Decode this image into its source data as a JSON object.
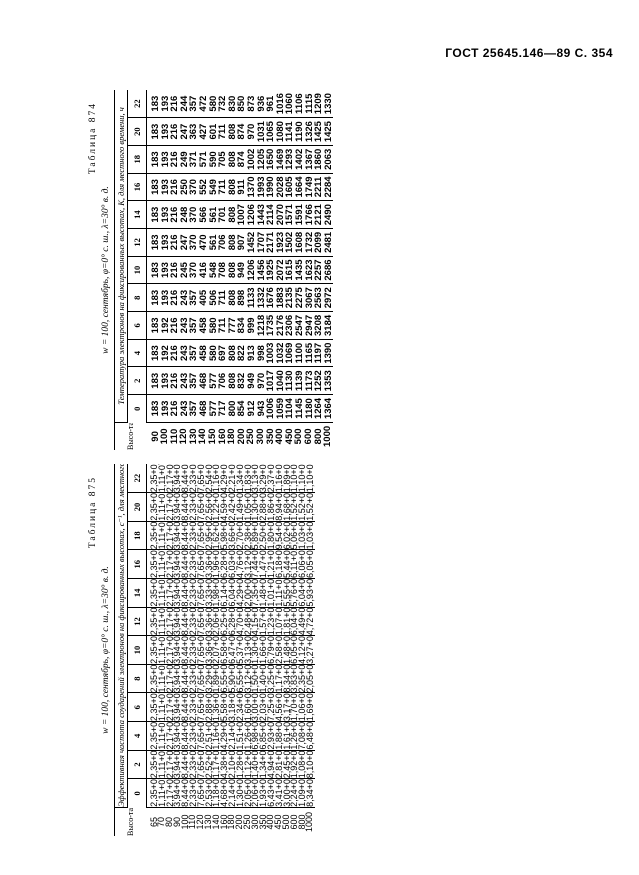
{
  "header": {
    "text": "ГОСТ 25645.146—89 С. 354"
  },
  "tables": [
    {
      "caption": "Таблица 874",
      "subcaption": "w = 100, сентябрь, φ=0° с. ш., λ=30° в. д.",
      "description": "Температура электронов на фиксированных высотах, К, для местного времени, ч",
      "height_header": "Высо-та, км",
      "times": [
        "0",
        "2",
        "4",
        "6",
        "8",
        "10",
        "12",
        "14",
        "16",
        "18",
        "20",
        "22"
      ],
      "heights": [
        "90",
        "100",
        "110",
        "120",
        "130",
        "140",
        "150",
        "160",
        "180",
        "200",
        "250",
        "300",
        "350",
        "400",
        "450",
        "500",
        "600",
        "800",
        "1000"
      ],
      "values": [
        [
          "183",
          "183",
          "183",
          "183",
          "183",
          "183",
          "183",
          "183",
          "183",
          "183",
          "183",
          "183"
        ],
        [
          "193",
          "193",
          "192",
          "192",
          "193",
          "193",
          "193",
          "193",
          "193",
          "193",
          "193",
          "193"
        ],
        [
          "216",
          "216",
          "216",
          "216",
          "216",
          "216",
          "216",
          "216",
          "216",
          "216",
          "216",
          "216"
        ],
        [
          "243",
          "243",
          "243",
          "243",
          "243",
          "245",
          "247",
          "248",
          "250",
          "249",
          "247",
          "244"
        ],
        [
          "357",
          "357",
          "357",
          "357",
          "357",
          "370",
          "370",
          "370",
          "370",
          "371",
          "363",
          "357"
        ],
        [
          "468",
          "468",
          "458",
          "458",
          "405",
          "416",
          "470",
          "566",
          "552",
          "571",
          "427",
          "472"
        ],
        [
          "577",
          "577",
          "580",
          "580",
          "506",
          "548",
          "561",
          "561",
          "549",
          "590",
          "601",
          "580"
        ],
        [
          "717",
          "706",
          "697",
          "711",
          "711",
          "708",
          "706",
          "701",
          "711",
          "705",
          "711",
          "732"
        ],
        [
          "800",
          "808",
          "808",
          "777",
          "808",
          "808",
          "808",
          "808",
          "808",
          "808",
          "808",
          "830"
        ],
        [
          "854",
          "832",
          "822",
          "834",
          "898",
          "949",
          "907",
          "1007",
          "911",
          "874",
          "874",
          "850"
        ],
        [
          "912",
          "949",
          "913",
          "999",
          "1133",
          "1206",
          "1452",
          "1206",
          "1370",
          "1002",
          "970",
          "873"
        ],
        [
          "943",
          "970",
          "998",
          "1218",
          "1332",
          "1456",
          "1707",
          "1443",
          "1993",
          "1205",
          "1031",
          "936"
        ],
        [
          "1006",
          "1017",
          "1003",
          "1735",
          "1676",
          "1925",
          "2171",
          "2114",
          "1990",
          "1650",
          "1065",
          "961"
        ],
        [
          "1059",
          "1040",
          "1032",
          "2176",
          "1883",
          "2072",
          "1923",
          "2070",
          "2028",
          "1469",
          "1080",
          "1016"
        ],
        [
          "1104",
          "1130",
          "1069",
          "2306",
          "2135",
          "1615",
          "1502",
          "1571",
          "1605",
          "1293",
          "1141",
          "1060"
        ],
        [
          "1145",
          "1139",
          "1100",
          "2547",
          "2275",
          "1435",
          "1608",
          "1591",
          "1664",
          "1402",
          "1190",
          "1106"
        ],
        [
          "1180",
          "1173",
          "1165",
          "2947",
          "3067",
          "1623",
          "1732",
          "1766",
          "1749",
          "1367",
          "1326",
          "1115"
        ],
        [
          "1264",
          "1252",
          "1197",
          "3208",
          "2563",
          "2257",
          "2099",
          "2121",
          "2211",
          "1860",
          "1425",
          "1209"
        ],
        [
          "1364",
          "1353",
          "1390",
          "3184",
          "2972",
          "2686",
          "2481",
          "2490",
          "2284",
          "2063",
          "1425",
          "1330"
        ]
      ]
    },
    {
      "caption": "Таблица 875",
      "subcaption": "w = 100, сентябрь, φ=0° с. ш., λ=30° в. д.",
      "description": "Эффективная частота соударений электронов на фиксированных высотах, с⁻¹, для местного времени, ч",
      "height_header": "Высо-та, км",
      "times": [
        "0",
        "2",
        "4",
        "6",
        "8",
        "10",
        "12",
        "14",
        "16",
        "18",
        "20",
        "22"
      ],
      "heights": [
        "65",
        "70",
        "80",
        "90",
        "100",
        "110",
        "120",
        "130",
        "140",
        "160",
        "180",
        "200",
        "250",
        "300",
        "350",
        "400",
        "450",
        "500",
        "600",
        "800",
        "1000"
      ],
      "values": [
        [
          "2,35+07",
          "2,35+07",
          "2,35+07",
          "2,35+07",
          "2,35+07",
          "2,35+07",
          "2,35+07",
          "2,35+07",
          "2,35+07",
          "2,35+07",
          "2,35+07",
          "2,35+07"
        ],
        [
          "1,11+07",
          "1,11+07",
          "1,11+07",
          "1,11+07",
          "1,11+07",
          "1,11+07",
          "1,11+07",
          "1,11+07",
          "1,11+07",
          "1,11+07",
          "1,11+07",
          "1,11+07"
        ],
        [
          "2,17+06",
          "2,17+06",
          "2,17+06",
          "2,17+06",
          "2,17+06",
          "2,17+06",
          "2,17+06",
          "2,17+06",
          "2,17+06",
          "2,17+06",
          "2,17+06",
          "2,17+06"
        ],
        [
          "3,94+05",
          "3,94+05",
          "3,94+05",
          "3,94+05",
          "3,94+05",
          "3,94+05",
          "3,94+05",
          "3,94+05",
          "3,94+05",
          "3,94+05",
          "3,94+05",
          "3,94+05"
        ],
        [
          "8,44+04",
          "8,44+04",
          "8,44+04",
          "8,44+04",
          "8,44+04",
          "8,44+04",
          "8,44+04",
          "8,44+04",
          "8,44+04",
          "8,44+04",
          "8,44+04",
          "8,44+04"
        ],
        [
          "2,33+04",
          "2,33+04",
          "2,33+04",
          "2,33+04",
          "2,33+04",
          "2,33+04",
          "2,33+04",
          "2,33+04",
          "2,33+04",
          "2,33+04",
          "2,33+04",
          "2,33+04"
        ],
        [
          "7,65+03",
          "7,65+03",
          "7,65+03",
          "7,65+03",
          "7,65+03",
          "7,65+03",
          "7,65+03",
          "7,65+03",
          "7,65+03",
          "7,65+03",
          "7,65+03",
          "7,65+03"
        ],
        [
          "2,53+03",
          "2,52+03",
          "2,51+03",
          "2,88+03",
          "3,29+03",
          "3,36+03",
          "3,36+03",
          "3,33+03",
          "3,36+03",
          "2,95+03",
          "2,56+03",
          "2,54+03"
        ],
        [
          "1,18+03",
          "1,17+03",
          "1,16+03",
          "1,36+03",
          "1,89+03",
          "2,07+03",
          "2,06+03",
          "1,98+03",
          "1,96+03",
          "1,62+03",
          "1,22+03",
          "1,16+03"
        ],
        [
          "4,68+02",
          "4,38+02",
          "4,29+02",
          "5,58+02",
          "6,55+02",
          "6,58+02",
          "6,25+02",
          "6,14+02",
          "6,28+02",
          "5,98+02",
          "4,59+02",
          "4,29+02"
        ],
        [
          "2,14+02",
          "2,10+02",
          "2,14+02",
          "3,18+02",
          "5,90+02",
          "6,47+02",
          "6,28+02",
          "6,04+02",
          "6,03+02",
          "3,66+02",
          "2,42+02",
          "2,21+02"
        ],
        [
          "1,30+02",
          "1,28+02",
          "1,51+02",
          "2,34+02",
          "6,55+02",
          "5,37+02",
          "4,70+02",
          "4,29+02",
          "4,76+02",
          "2,70+02",
          "1,49+02",
          "1,34+02"
        ],
        [
          "2,05+03",
          "1,12+02",
          "1,26+02",
          "1,60+02",
          "3,12+02",
          "3,13+02",
          "2,48+02",
          "2,00+02",
          "3,12+02",
          "2,38+02",
          "1,05+02",
          "1,83+01"
        ],
        [
          "2,06+03",
          "1,40+03",
          "6,98+02",
          "3,00+02",
          "1,50+03",
          "1,30+03",
          "4,15+02",
          "7,35+02",
          "7,44+02",
          "5,89+02",
          "1,30+03",
          "3,13+03"
        ],
        [
          "1,93+03",
          "1,34+03",
          "6,85+02",
          "2,03+02",
          "1,40+03",
          "1,66+03",
          "1,57+03",
          "1,48+03",
          "1,47+03",
          "2,50+03",
          "2,88+03",
          "3,29+03"
        ],
        [
          "6,43+02",
          "4,94+02",
          "2,93+02",
          "7,25+01",
          "3,25+02",
          "6,79+02",
          "1,23+03",
          "1,01+03",
          "1,21+03",
          "1,80+03",
          "1,86+03",
          "2,37+03"
        ],
        [
          "3,41+02",
          "2,81+02",
          "1,88+02",
          "4,56+01",
          "1,17+02",
          "2,58+02",
          "1,07+03",
          "1,11+03",
          "6,18+02",
          "9,54+02",
          "8,94+02",
          "1,16+03"
        ],
        [
          "3,00+02",
          "2,45+02",
          "1,61+02",
          "3,17+01",
          "8,34+01",
          "1,48+02",
          "1,81+02",
          "5,55+02",
          "5,44+02",
          "6,02+02",
          "1,68+02",
          "1,89+02"
        ],
        [
          "2,24+01",
          "1,92+01",
          "1,26+01",
          "1,70+01",
          "3,83+01",
          "6,05+01",
          "6,04+01",
          "5,76+01",
          "6,11+01",
          "5,06+02",
          "1,52+02",
          "1,10+02"
        ],
        [
          "1,09+01",
          "1,08+01",
          "7,08+00",
          "1,06+01",
          "2,35+01",
          "4,12+01",
          "4,49+01",
          "6,04+01",
          "6,06+01",
          "1,03+02",
          "1,52+02",
          "1,10+02"
        ],
        [
          "8,34+01",
          "8,10+01",
          "6,48+01",
          "1,69+01",
          "2,05+01",
          "3,27+01",
          "4,72+01",
          "5,93+01",
          "6,05+01",
          "1,03+02",
          "1,52+02",
          "1,10+02"
        ]
      ]
    }
  ]
}
